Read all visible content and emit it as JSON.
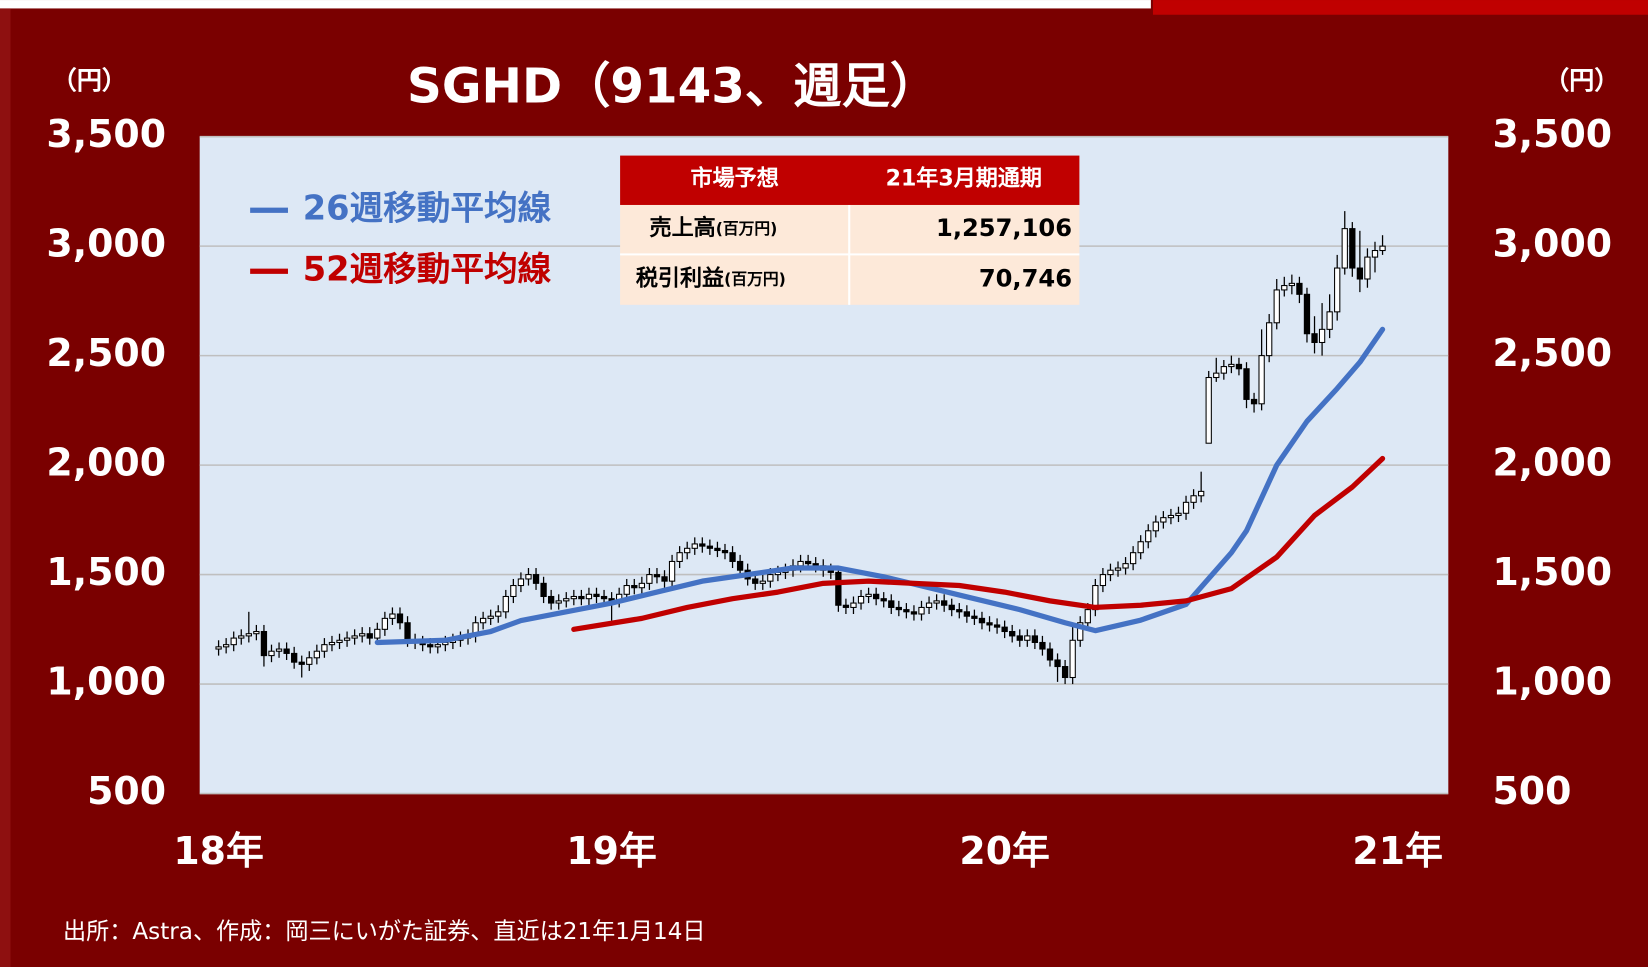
{
  "chart_data": {
    "type": "candlestick",
    "title": "SGHD（9143、週足）",
    "y_unit": "（円）",
    "x": [
      0,
      1,
      2,
      3,
      4,
      5,
      6,
      7,
      8,
      9,
      10,
      11,
      12,
      13,
      14,
      15,
      16,
      17,
      18,
      19,
      20,
      21,
      22,
      23,
      24,
      25,
      26,
      27,
      28,
      29,
      30,
      31,
      32,
      33,
      34,
      35,
      36,
      37,
      38,
      39,
      40,
      41,
      42,
      43,
      44,
      45,
      46,
      47,
      48,
      49,
      50,
      51,
      52,
      53,
      54,
      55,
      56,
      57,
      58,
      59,
      60,
      61,
      62,
      63,
      64,
      65,
      66,
      67,
      68,
      69,
      70,
      71,
      72,
      73,
      74,
      75,
      76,
      77,
      78,
      79,
      80,
      81,
      82,
      83,
      84,
      85,
      86,
      87,
      88,
      89,
      90,
      91,
      92,
      93,
      94,
      95,
      96,
      97,
      98,
      99,
      100,
      101,
      102,
      103,
      104,
      105,
      106,
      107,
      108,
      109,
      110,
      111,
      112,
      113,
      114,
      115,
      116,
      117,
      118,
      119,
      120,
      121,
      122,
      123,
      124,
      125,
      126,
      127,
      128,
      129,
      130,
      131,
      132,
      133,
      134,
      135,
      136,
      137,
      138,
      139,
      140,
      141,
      142,
      143,
      144,
      145,
      146,
      147,
      148,
      149,
      150,
      151,
      152,
      153,
      154
    ],
    "open": [
      1160,
      1170,
      1180,
      1210,
      1220,
      1230,
      1240,
      1130,
      1150,
      1160,
      1140,
      1100,
      1090,
      1120,
      1150,
      1180,
      1190,
      1200,
      1210,
      1220,
      1230,
      1210,
      1250,
      1300,
      1320,
      1280,
      1200,
      1190,
      1180,
      1170,
      1180,
      1190,
      1200,
      1210,
      1220,
      1280,
      1300,
      1310,
      1330,
      1400,
      1450,
      1480,
      1500,
      1460,
      1400,
      1370,
      1380,
      1390,
      1400,
      1390,
      1410,
      1400,
      1390,
      1380,
      1410,
      1450,
      1440,
      1460,
      1500,
      1490,
      1470,
      1560,
      1600,
      1620,
      1640,
      1630,
      1620,
      1610,
      1600,
      1560,
      1520,
      1480,
      1460,
      1470,
      1500,
      1510,
      1520,
      1540,
      1560,
      1550,
      1540,
      1520,
      1510,
      1360,
      1350,
      1370,
      1400,
      1410,
      1390,
      1380,
      1350,
      1340,
      1330,
      1320,
      1350,
      1370,
      1380,
      1360,
      1340,
      1330,
      1310,
      1300,
      1280,
      1270,
      1260,
      1240,
      1220,
      1200,
      1220,
      1190,
      1160,
      1110,
      1080,
      1030,
      1200,
      1280,
      1340,
      1450,
      1500,
      1520,
      1530,
      1550,
      1600,
      1650,
      1700,
      1740,
      1760,
      1770,
      1780,
      1830,
      1860,
      2100,
      2400,
      2420,
      2450,
      2460,
      2440,
      2300,
      2280,
      2500,
      2650,
      2800,
      2820,
      2830,
      2780,
      2600,
      2560,
      2620,
      2700,
      2900,
      3080,
      2900,
      2850,
      2950,
      2980
    ],
    "high": [
      1200,
      1210,
      1240,
      1250,
      1330,
      1270,
      1270,
      1180,
      1190,
      1190,
      1170,
      1130,
      1150,
      1180,
      1210,
      1220,
      1230,
      1240,
      1250,
      1260,
      1260,
      1280,
      1330,
      1350,
      1350,
      1310,
      1230,
      1220,
      1210,
      1210,
      1220,
      1230,
      1240,
      1250,
      1310,
      1330,
      1340,
      1360,
      1430,
      1480,
      1510,
      1530,
      1530,
      1490,
      1430,
      1410,
      1420,
      1430,
      1430,
      1440,
      1440,
      1430,
      1420,
      1440,
      1480,
      1480,
      1490,
      1530,
      1530,
      1520,
      1590,
      1630,
      1650,
      1670,
      1670,
      1660,
      1650,
      1640,
      1630,
      1590,
      1550,
      1510,
      1500,
      1530,
      1540,
      1550,
      1570,
      1590,
      1590,
      1580,
      1570,
      1550,
      1540,
      1390,
      1400,
      1430,
      1440,
      1440,
      1420,
      1410,
      1380,
      1370,
      1360,
      1380,
      1400,
      1410,
      1410,
      1390,
      1370,
      1360,
      1340,
      1330,
      1310,
      1300,
      1290,
      1270,
      1250,
      1250,
      1250,
      1220,
      1190,
      1140,
      1110,
      1270,
      1310,
      1370,
      1480,
      1530,
      1550,
      1560,
      1580,
      1630,
      1680,
      1730,
      1770,
      1790,
      1800,
      1810,
      1860,
      1890,
      1970,
      2430,
      2490,
      2480,
      2500,
      2490,
      2470,
      2330,
      2620,
      2690,
      2850,
      2860,
      2870,
      2860,
      2810,
      2680,
      2740,
      2780,
      2960,
      3160,
      3110,
      3070,
      2990,
      3020,
      3050
    ],
    "low": [
      1130,
      1140,
      1150,
      1180,
      1190,
      1200,
      1080,
      1100,
      1120,
      1110,
      1070,
      1030,
      1060,
      1090,
      1120,
      1150,
      1160,
      1170,
      1180,
      1190,
      1180,
      1180,
      1220,
      1270,
      1250,
      1170,
      1160,
      1150,
      1140,
      1140,
      1150,
      1160,
      1170,
      1180,
      1190,
      1250,
      1270,
      1280,
      1300,
      1370,
      1420,
      1450,
      1430,
      1370,
      1340,
      1340,
      1350,
      1360,
      1360,
      1360,
      1370,
      1360,
      1290,
      1350,
      1380,
      1410,
      1410,
      1430,
      1460,
      1440,
      1440,
      1530,
      1570,
      1590,
      1600,
      1590,
      1580,
      1570,
      1530,
      1490,
      1450,
      1430,
      1430,
      1440,
      1470,
      1480,
      1490,
      1510,
      1520,
      1510,
      1490,
      1480,
      1330,
      1320,
      1320,
      1340,
      1370,
      1360,
      1350,
      1320,
      1310,
      1300,
      1290,
      1290,
      1320,
      1340,
      1330,
      1310,
      1300,
      1280,
      1270,
      1250,
      1240,
      1230,
      1210,
      1190,
      1170,
      1170,
      1160,
      1130,
      1080,
      1010,
      1000,
      1000,
      1170,
      1250,
      1310,
      1420,
      1470,
      1490,
      1500,
      1520,
      1570,
      1620,
      1670,
      1710,
      1730,
      1740,
      1750,
      1800,
      1830,
      2100,
      2380,
      2390,
      2420,
      2410,
      2260,
      2240,
      2250,
      2470,
      2620,
      2770,
      2780,
      2740,
      2560,
      2510,
      2500,
      2580,
      2660,
      2870,
      2860,
      2790,
      2810,
      2880,
      2960
    ],
    "close": [
      1170,
      1180,
      1210,
      1220,
      1230,
      1240,
      1130,
      1150,
      1160,
      1140,
      1100,
      1090,
      1120,
      1150,
      1180,
      1190,
      1200,
      1210,
      1220,
      1230,
      1210,
      1250,
      1300,
      1320,
      1280,
      1200,
      1190,
      1180,
      1170,
      1180,
      1190,
      1200,
      1210,
      1220,
      1280,
      1300,
      1310,
      1330,
      1400,
      1450,
      1480,
      1500,
      1460,
      1400,
      1370,
      1380,
      1390,
      1400,
      1390,
      1410,
      1400,
      1390,
      1380,
      1410,
      1450,
      1440,
      1460,
      1500,
      1490,
      1470,
      1560,
      1600,
      1620,
      1640,
      1630,
      1620,
      1610,
      1600,
      1560,
      1520,
      1480,
      1460,
      1470,
      1500,
      1510,
      1520,
      1540,
      1560,
      1550,
      1540,
      1520,
      1510,
      1360,
      1350,
      1370,
      1400,
      1410,
      1390,
      1380,
      1350,
      1340,
      1330,
      1320,
      1350,
      1370,
      1380,
      1360,
      1340,
      1330,
      1310,
      1300,
      1280,
      1270,
      1260,
      1240,
      1220,
      1200,
      1220,
      1190,
      1160,
      1110,
      1080,
      1030,
      1200,
      1280,
      1340,
      1450,
      1500,
      1520,
      1530,
      1550,
      1600,
      1650,
      1700,
      1740,
      1760,
      1770,
      1780,
      1830,
      1860,
      1880,
      2400,
      2420,
      2450,
      2460,
      2440,
      2300,
      2280,
      2500,
      2650,
      2800,
      2820,
      2830,
      2780,
      2600,
      2560,
      2620,
      2700,
      2900,
      3080,
      2900,
      2850,
      2950,
      2980,
      3000
    ],
    "series": [
      {
        "name": "26週移動平均線",
        "color": "#4472c4",
        "x": [
          21,
          30,
          36,
          40,
          46,
          52,
          58,
          64,
          70,
          76,
          82,
          88,
          94,
          100,
          106,
          112,
          116,
          122,
          128,
          134,
          136,
          140,
          144,
          148,
          151,
          154
        ],
        "values": [
          1190,
          1200,
          1240,
          1290,
          1330,
          1370,
          1420,
          1470,
          1500,
          1530,
          1530,
          1490,
          1440,
          1390,
          1340,
          1280,
          1244,
          1292,
          1364,
          1600,
          1700,
          2000,
          2200,
          2350,
          2470,
          2620
        ]
      },
      {
        "name": "52週移動平均線",
        "color": "#c00000",
        "x": [
          47,
          56,
          62,
          68,
          74,
          80,
          86,
          92,
          98,
          104,
          110,
          116,
          122,
          128,
          134,
          140,
          145,
          150,
          154
        ],
        "values": [
          1250,
          1300,
          1350,
          1390,
          1420,
          1460,
          1470,
          1460,
          1450,
          1420,
          1380,
          1350,
          1360,
          1380,
          1436,
          1580,
          1770,
          1900,
          2030
        ]
      }
    ],
    "xlim": [
      -2.5,
      162.7
    ],
    "xticks": [
      {
        "value": 0,
        "label": "18年"
      },
      {
        "value": 52,
        "label": "19年"
      },
      {
        "value": 104,
        "label": "20年"
      },
      {
        "value": 156,
        "label": "21年"
      }
    ],
    "ylim": [
      500,
      3500
    ],
    "yticks": [
      500,
      {
        "value": 1000,
        "label": "1,000"
      },
      {
        "value": 1500,
        "label": "1,500"
      },
      {
        "value": 2000,
        "label": "2,000"
      },
      {
        "value": 2500,
        "label": "2,500"
      },
      {
        "value": 3000,
        "label": "3,000"
      },
      {
        "value": 3500,
        "label": "3,500"
      }
    ],
    "grid": true,
    "up_color": "#ffffff",
    "down_color": "#000000"
  },
  "table": {
    "header": [
      "市場予想",
      "21年3月期通期"
    ],
    "rows": [
      {
        "label": "売上高",
        "unit": "(百万円)",
        "value": "1,257,106"
      },
      {
        "label": "税引利益",
        "unit": "(百万円)",
        "value": "70,746"
      }
    ]
  },
  "footnote": "出所：Astra、作成：岡三にいがた証券、直近は21年1月14日"
}
